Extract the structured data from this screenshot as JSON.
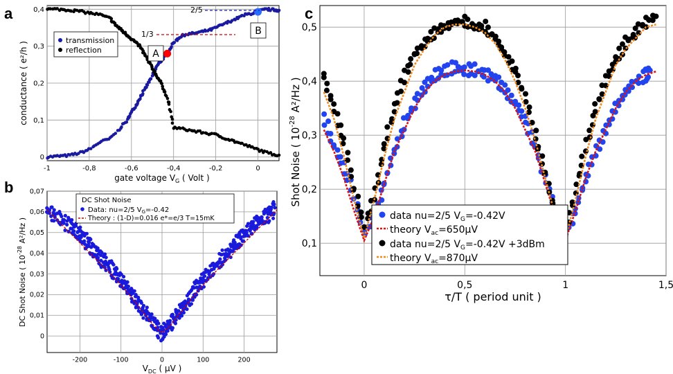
{
  "panels": {
    "a": "a",
    "b": "b",
    "c": "c"
  },
  "chart_data": [
    {
      "id": "a",
      "type": "scatter",
      "xlabel": "gate voltage V_G ( Volt )",
      "xlabel_main": "gate voltage V",
      "xlabel_sub": "G",
      "xlabel_tail": " ( Volt )",
      "ylabel": "conductance ( e²/h )",
      "xlim": [
        -1.0,
        0.1
      ],
      "ylim": [
        -0.01,
        0.41
      ],
      "xticks": [
        -1,
        -0.8,
        -0.6,
        -0.4,
        -0.2,
        0
      ],
      "xtick_labels": [
        "-1",
        "-0,8",
        "-0,6",
        "-0,4",
        "-0,2",
        "0"
      ],
      "yticks": [
        0,
        0.1,
        0.2,
        0.3,
        0.4
      ],
      "ytick_labels": [
        "0",
        "0,1",
        "0,2",
        "0,3",
        "0,4"
      ],
      "grid": true,
      "legend_position": "top-left",
      "series": [
        {
          "name": "transmission",
          "color": "#1a1aa0",
          "x": [
            -1,
            -0.95,
            -0.9,
            -0.85,
            -0.8,
            -0.75,
            -0.7,
            -0.65,
            -0.62,
            -0.6,
            -0.58,
            -0.56,
            -0.54,
            -0.52,
            -0.5,
            -0.48,
            -0.46,
            -0.44,
            -0.42,
            -0.4,
            -0.37,
            -0.34,
            -0.3,
            -0.26,
            -0.22,
            -0.18,
            -0.14,
            -0.1,
            -0.06,
            -0.02,
            0,
            0.04,
            0.08,
            0.1
          ],
          "y": [
            0,
            0.002,
            0.004,
            0.01,
            0.02,
            0.04,
            0.05,
            0.08,
            0.1,
            0.12,
            0.14,
            0.16,
            0.18,
            0.2,
            0.22,
            0.245,
            0.26,
            0.275,
            0.29,
            0.31,
            0.325,
            0.332,
            0.335,
            0.34,
            0.345,
            0.355,
            0.365,
            0.375,
            0.385,
            0.39,
            0.395,
            0.4,
            0.398,
            0.397
          ]
        },
        {
          "name": "reflection",
          "color": "#000000",
          "x": [
            -1,
            -0.95,
            -0.9,
            -0.85,
            -0.8,
            -0.75,
            -0.7,
            -0.68,
            -0.66,
            -0.64,
            -0.62,
            -0.6,
            -0.58,
            -0.56,
            -0.54,
            -0.52,
            -0.5,
            -0.48,
            -0.46,
            -0.44,
            -0.42,
            -0.4,
            -0.35,
            -0.3,
            -0.25,
            -0.2,
            -0.15,
            -0.1,
            -0.05,
            0,
            0.05,
            0.1
          ],
          "y": [
            0.4,
            0.4,
            0.398,
            0.395,
            0.39,
            0.385,
            0.375,
            0.36,
            0.35,
            0.34,
            0.33,
            0.32,
            0.31,
            0.3,
            0.28,
            0.26,
            0.24,
            0.22,
            0.2,
            0.175,
            0.14,
            0.08,
            0.075,
            0.07,
            0.065,
            0.06,
            0.05,
            0.04,
            0.03,
            0.02,
            0.01,
            0.005
          ]
        }
      ],
      "annotations": [
        {
          "text": "2/5",
          "color": "#1a1aa0",
          "y": 0.4
        },
        {
          "text": "1/3",
          "color": "#cc0000",
          "y": 0.333
        },
        {
          "text": "A",
          "x": -0.43,
          "y": 0.28,
          "color": "#ff0000"
        },
        {
          "text": "B",
          "x": 0,
          "y": 0.393,
          "color": "#2a6bff"
        }
      ]
    },
    {
      "id": "b",
      "type": "scatter",
      "xlabel": "V_DC ( µV )",
      "xlabel_main": "V",
      "xlabel_sub": "DC",
      "xlabel_tail": " ( µV )",
      "ylabel": "DC Shot Noise ( 10⁻²⁸ A²/Hz )",
      "ylabel_main": "DC Shot Noise ( 10",
      "ylabel_sup": "-28",
      "ylabel_tail": " A²/Hz )",
      "xlim": [
        -280,
        280
      ],
      "ylim": [
        -0.008,
        0.07
      ],
      "xticks": [
        -200,
        -100,
        0,
        100,
        200
      ],
      "xtick_labels": [
        "-200",
        "-100",
        "0",
        "100",
        "200"
      ],
      "yticks": [
        0,
        0.01,
        0.02,
        0.03,
        0.04,
        0.05,
        0.06,
        0.07
      ],
      "ytick_labels": [
        "0",
        "0,01",
        "0,02",
        "0,03",
        "0,04",
        "0,05",
        "0,06",
        "0,07"
      ],
      "grid": true,
      "legend_title": "DC Shot Noise",
      "legend_position": "top-left",
      "series": [
        {
          "name": "Data: nu=2/5 V_G=-0.42",
          "legend_main": "Data: nu=2/5 V",
          "legend_sub": "G",
          "legend_tail": "=-0.42",
          "color": "#1a1adc",
          "x": [
            -280,
            -250,
            -220,
            -200,
            -180,
            -160,
            -140,
            -120,
            -100,
            -80,
            -60,
            -40,
            -20,
            0,
            20,
            40,
            60,
            80,
            100,
            120,
            140,
            160,
            180,
            200,
            220,
            240,
            260,
            275
          ],
          "y": [
            0.061,
            0.057,
            0.053,
            0.049,
            0.045,
            0.04,
            0.036,
            0.032,
            0.027,
            0.022,
            0.016,
            0.011,
            0.006,
            0.001,
            0.006,
            0.011,
            0.016,
            0.022,
            0.027,
            0.032,
            0.036,
            0.04,
            0.045,
            0.049,
            0.053,
            0.056,
            0.059,
            0.062
          ]
        },
        {
          "name": "Theory : (1-D)=0.016 e*=e/3 T=15mK",
          "color": "#cc0000",
          "x": [
            -280,
            -240,
            -200,
            -160,
            -120,
            -80,
            -40,
            -20,
            0,
            20,
            40,
            80,
            120,
            160,
            200,
            240,
            280
          ],
          "y": [
            0.061,
            0.053,
            0.045,
            0.037,
            0.029,
            0.02,
            0.01,
            0.005,
            0.0015,
            0.005,
            0.01,
            0.02,
            0.029,
            0.037,
            0.045,
            0.053,
            0.061
          ]
        }
      ]
    },
    {
      "id": "c",
      "type": "scatter",
      "xlabel": "τ/T  ( period unit )",
      "ylabel": "Shot Noise ( 10⁻²⁸ A²/Hz )",
      "ylabel_main": "Shot Noise ( 10",
      "ylabel_sup": "-28",
      "ylabel_tail": " A²/Hz )",
      "xlim": [
        -0.22,
        1.5
      ],
      "ylim": [
        0.04,
        0.54
      ],
      "xticks": [
        0,
        0.5,
        1,
        1.5
      ],
      "xtick_labels": [
        "0",
        "0,5",
        "1",
        "1,5"
      ],
      "yticks": [
        0.1,
        0.2,
        0.3,
        0.4,
        0.5
      ],
      "ytick_labels": [
        "0,1",
        "0,2",
        "0,3",
        "0,4",
        "0,5"
      ],
      "grid": true,
      "legend_position": "bottom-center",
      "series": [
        {
          "name": "data nu=2/5 V_G=-0.42V",
          "legend_main": "data nu=2/5 V",
          "legend_sub": "G",
          "legend_tail": "=-0.42V",
          "color": "#2244ee",
          "x": [
            -0.2,
            -0.15,
            -0.1,
            -0.05,
            0,
            0.05,
            0.1,
            0.15,
            0.2,
            0.25,
            0.3,
            0.35,
            0.4,
            0.45,
            0.5,
            0.55,
            0.6,
            0.65,
            0.7,
            0.75,
            0.8,
            0.85,
            0.9,
            0.95,
            1,
            1.05,
            1.1,
            1.15,
            1.2,
            1.25,
            1.3,
            1.35,
            1.4,
            1.42
          ],
          "y": [
            0.33,
            0.28,
            0.24,
            0.19,
            0.12,
            0.15,
            0.21,
            0.27,
            0.32,
            0.36,
            0.39,
            0.41,
            0.42,
            0.425,
            0.42,
            0.42,
            0.415,
            0.405,
            0.385,
            0.36,
            0.33,
            0.28,
            0.22,
            0.16,
            0.12,
            0.16,
            0.22,
            0.27,
            0.31,
            0.35,
            0.38,
            0.4,
            0.41,
            0.42
          ]
        },
        {
          "name": "theory V_ac=650µV",
          "legend_main": "theory V",
          "legend_sub": "ac",
          "legend_tail": "=650µV",
          "color": "#dd1111",
          "x": [
            -0.2,
            -0.15,
            -0.1,
            -0.05,
            0,
            0.05,
            0.1,
            0.15,
            0.2,
            0.25,
            0.3,
            0.35,
            0.4,
            0.45,
            0.5,
            0.55,
            0.6,
            0.65,
            0.7,
            0.75,
            0.8,
            0.85,
            0.9,
            0.95,
            1,
            1.05,
            1.1,
            1.15,
            1.2,
            1.25,
            1.3,
            1.35,
            1.4,
            1.45
          ],
          "y": [
            0.31,
            0.27,
            0.22,
            0.16,
            0.105,
            0.15,
            0.21,
            0.27,
            0.31,
            0.35,
            0.38,
            0.4,
            0.412,
            0.418,
            0.42,
            0.418,
            0.412,
            0.4,
            0.38,
            0.35,
            0.31,
            0.27,
            0.21,
            0.15,
            0.105,
            0.16,
            0.22,
            0.27,
            0.31,
            0.35,
            0.38,
            0.4,
            0.412,
            0.418
          ]
        },
        {
          "name": "data nu=2/5 V_G=-0.42V +3dBm",
          "legend_main": "data nu=2/5 V",
          "legend_sub": "G",
          "legend_tail": "=-0.42V +3dBm",
          "color": "#000000",
          "x": [
            -0.2,
            -0.15,
            -0.1,
            -0.05,
            0,
            0.05,
            0.1,
            0.15,
            0.2,
            0.25,
            0.3,
            0.35,
            0.4,
            0.45,
            0.5,
            0.55,
            0.6,
            0.65,
            0.7,
            0.75,
            0.8,
            0.85,
            0.9,
            0.95,
            1,
            1.05,
            1.1,
            1.15,
            1.2,
            1.25,
            1.3,
            1.35,
            1.4,
            1.45
          ],
          "y": [
            0.41,
            0.35,
            0.29,
            0.2,
            0.13,
            0.19,
            0.28,
            0.35,
            0.41,
            0.45,
            0.47,
            0.49,
            0.5,
            0.51,
            0.51,
            0.5,
            0.5,
            0.48,
            0.45,
            0.42,
            0.37,
            0.3,
            0.23,
            0.15,
            0.12,
            0.2,
            0.28,
            0.35,
            0.4,
            0.44,
            0.47,
            0.49,
            0.51,
            0.52
          ]
        },
        {
          "name": "theory V_ac=870µV",
          "legend_main": "theory V",
          "legend_sub": "ac",
          "legend_tail": "=870µV",
          "color": "#f08a1c",
          "x": [
            -0.2,
            -0.15,
            -0.1,
            -0.05,
            0,
            0.05,
            0.1,
            0.15,
            0.2,
            0.25,
            0.3,
            0.35,
            0.4,
            0.45,
            0.5,
            0.55,
            0.6,
            0.65,
            0.7,
            0.75,
            0.8,
            0.85,
            0.9,
            0.95,
            1,
            1.05,
            1.1,
            1.15,
            1.2,
            1.25,
            1.3,
            1.35,
            1.4,
            1.45
          ],
          "y": [
            0.38,
            0.33,
            0.26,
            0.18,
            0.11,
            0.18,
            0.26,
            0.33,
            0.38,
            0.43,
            0.46,
            0.485,
            0.5,
            0.505,
            0.505,
            0.5,
            0.49,
            0.47,
            0.44,
            0.4,
            0.35,
            0.29,
            0.22,
            0.15,
            0.11,
            0.18,
            0.26,
            0.33,
            0.38,
            0.43,
            0.46,
            0.48,
            0.5,
            0.505
          ]
        }
      ]
    }
  ]
}
